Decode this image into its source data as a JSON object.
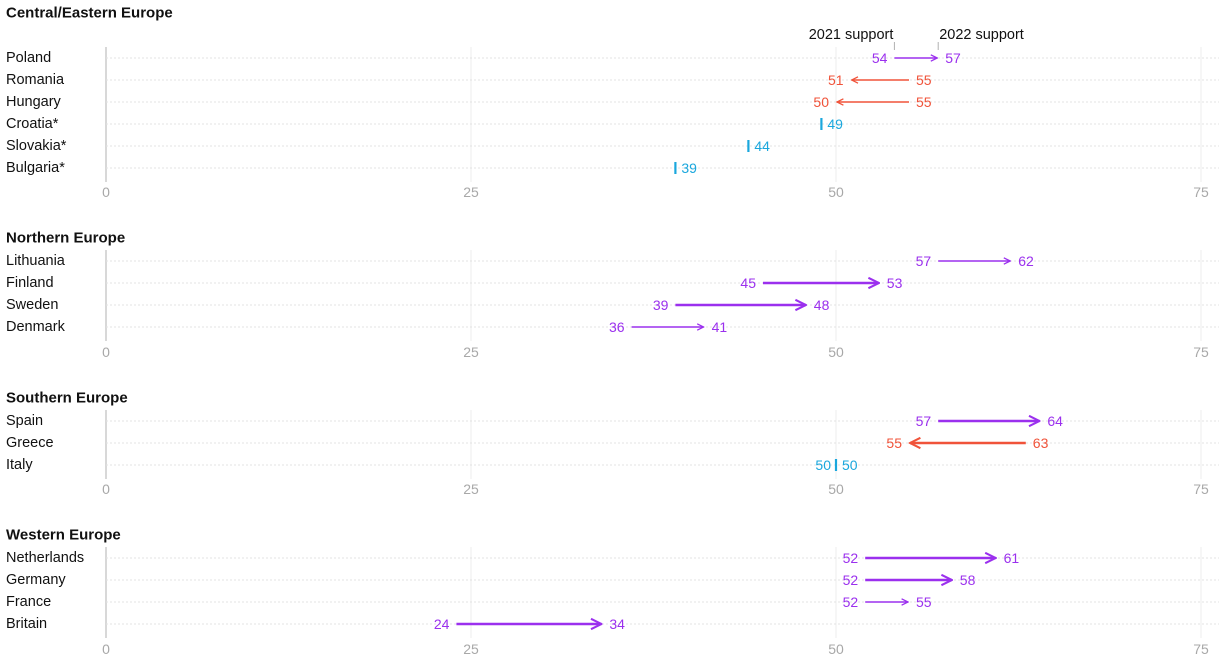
{
  "chart_data": {
    "type": "dumbbell",
    "legend": {
      "start_label": "2021 support",
      "end_label": "2022 support"
    },
    "axis": {
      "xlim": [
        0,
        75
      ],
      "ticks": [
        0,
        25,
        50,
        75
      ]
    },
    "colors": {
      "increase": "#9b30ee",
      "decrease": "#f0533a",
      "unchanged": "#1aa7dd"
    },
    "groups": [
      {
        "title": "Central/Eastern Europe",
        "rows": [
          {
            "country": "Poland",
            "start": 54,
            "end": 57
          },
          {
            "country": "Romania",
            "start": 55,
            "end": 51
          },
          {
            "country": "Hungary",
            "start": 55,
            "end": 50
          },
          {
            "country": "Croatia*",
            "start": null,
            "end": 49
          },
          {
            "country": "Slovakia*",
            "start": null,
            "end": 44
          },
          {
            "country": "Bulgaria*",
            "start": null,
            "end": 39
          }
        ]
      },
      {
        "title": "Northern Europe",
        "rows": [
          {
            "country": "Lithuania",
            "start": 57,
            "end": 62
          },
          {
            "country": "Finland",
            "start": 45,
            "end": 53
          },
          {
            "country": "Sweden",
            "start": 39,
            "end": 48
          },
          {
            "country": "Denmark",
            "start": 36,
            "end": 41
          }
        ]
      },
      {
        "title": "Southern Europe",
        "rows": [
          {
            "country": "Spain",
            "start": 57,
            "end": 64
          },
          {
            "country": "Greece",
            "start": 63,
            "end": 55
          },
          {
            "country": "Italy",
            "start": 50,
            "end": 50
          }
        ]
      },
      {
        "title": "Western Europe",
        "rows": [
          {
            "country": "Netherlands",
            "start": 52,
            "end": 61
          },
          {
            "country": "Germany",
            "start": 52,
            "end": 58
          },
          {
            "country": "France",
            "start": 52,
            "end": 55
          },
          {
            "country": "Britain",
            "start": 24,
            "end": 34
          }
        ]
      }
    ]
  }
}
